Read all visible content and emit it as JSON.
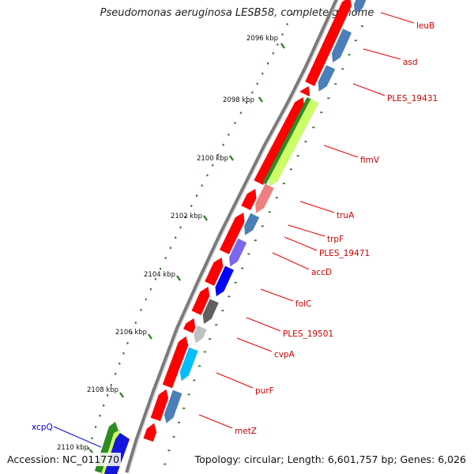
{
  "title": "Pseudomonas aeruginosa LESB58, complete genome",
  "footer": {
    "accession": "Accession: NC_011770",
    "stats": "Topology: circular; Length: 6,601,757 bp; Genes: 6,026"
  },
  "colors": {
    "forward_gene": "#ff0000",
    "backbone": "#888888",
    "tick": "#2a7a1e",
    "label_line": "#ee0000",
    "label_text": "#cc0000",
    "blue_label": "#0000cc"
  },
  "ticks": [
    "2096 kbp",
    "2098 kbp",
    "2100 kbp",
    "2102 kbp",
    "2104 kbp",
    "2106 kbp",
    "2108 kbp",
    "2110 kbp"
  ],
  "genes": [
    {
      "label": "leuB",
      "color": "#4a7fb8"
    },
    {
      "label": "asd",
      "color": "#4a7fb8"
    },
    {
      "label": "PLES_19431",
      "color": "#4a7fb8"
    },
    {
      "label": "fimV",
      "color": "#ccff66"
    },
    {
      "label": "truA",
      "color": "#f08080"
    },
    {
      "label": "trpF",
      "color": "#4a7fb8"
    },
    {
      "label": "PLES_19471",
      "color": "#7b68ee"
    },
    {
      "label": "accD",
      "color": "#0000ff"
    },
    {
      "label": "folC",
      "color": "#606060"
    },
    {
      "label": "PLES_19501",
      "color": "#c0c0c0"
    },
    {
      "label": "cvpA",
      "color": "#ffffff"
    },
    {
      "label": "purF",
      "color": "#00bfff"
    },
    {
      "label": "metZ",
      "color": "#4a7fb8"
    },
    {
      "label": "xcpQ",
      "color": "#2222ee"
    }
  ]
}
